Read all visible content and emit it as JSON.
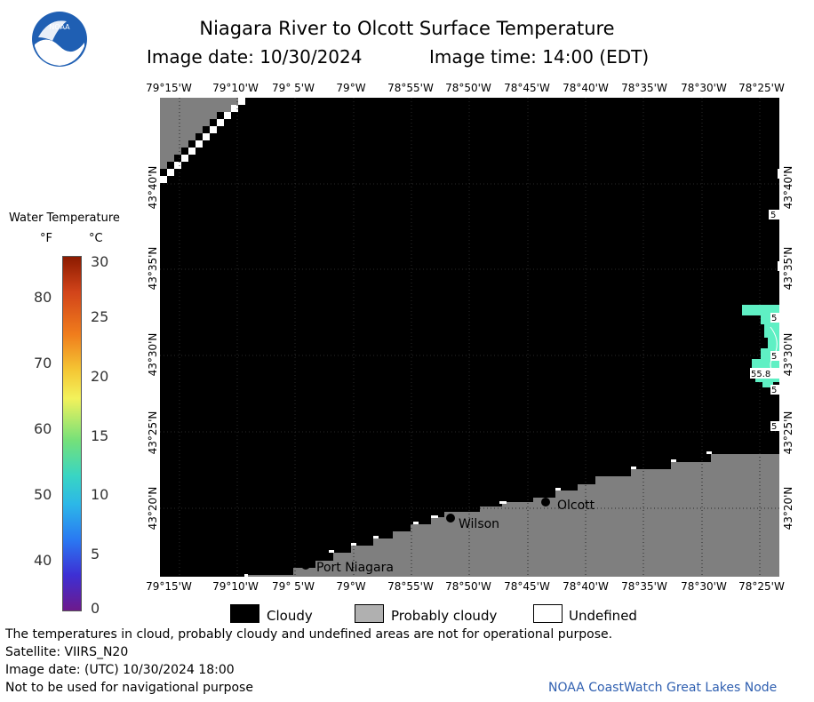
{
  "title": "Niagara River to Olcott Surface Temperature",
  "image_date_label": "Image date: 10/30/2024",
  "image_time_label": "Image time: 14:00 (EDT)",
  "logo": {
    "text": "NOAA"
  },
  "lon_ticks": [
    "79°15'W",
    "79°10'W",
    "79° 5'W",
    "79°W",
    "78°55'W",
    "78°50'W",
    "78°45'W",
    "78°40'W",
    "78°35'W",
    "78°30'W",
    "78°25'W"
  ],
  "lat_ticks": [
    "43°40'N",
    "43°35'N",
    "43°30'N",
    "43°25'N",
    "43°20'N"
  ],
  "scale": {
    "title": "Water Temperature",
    "unit_f": "°F",
    "unit_c": "°C",
    "f_ticks": [
      "80",
      "70",
      "60",
      "50",
      "40"
    ],
    "c_ticks": [
      "30",
      "25",
      "20",
      "15",
      "10",
      "5",
      "0"
    ]
  },
  "places": {
    "olcott": "Olcott",
    "wilson": "Wilson",
    "port_niagara": "Port Niagara"
  },
  "temp_labels": [
    "55.8",
    "5",
    "5",
    "5",
    "5",
    "5",
    "5"
  ],
  "legend": {
    "cloudy": "Cloudy",
    "probably_cloudy": "Probably cloudy",
    "undefined": "Undefined"
  },
  "footer": {
    "line1": "The temperatures in cloud, probably cloudy and undefined areas are not for operational purpose.",
    "line2": "Satellite: VIIRS_N20",
    "line3": "Image date: (UTC) 10/30/2024  18:00",
    "line4": "Not to be used for navigational purpose",
    "credit": "NOAA CoastWatch Great Lakes Node"
  },
  "colors": {
    "cloudy": "#000000",
    "probably_cloudy": "#7f7f7f",
    "undefined": "#ffffff",
    "water_cyan": "#5ff0c4",
    "credit": "#2f5fb0"
  }
}
